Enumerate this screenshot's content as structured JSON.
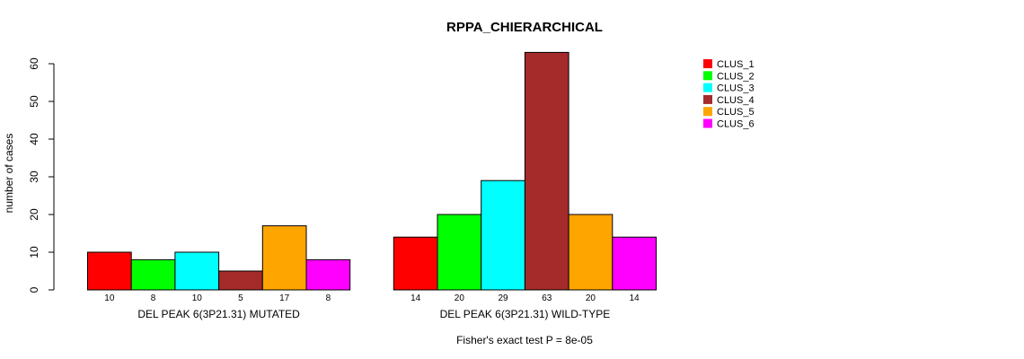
{
  "chart_data": {
    "type": "bar",
    "title": "RPPA_CHIERARCHICAL",
    "ylabel": "number of cases",
    "ylim": [
      0,
      60
    ],
    "yticks": [
      0,
      10,
      20,
      30,
      40,
      50,
      60
    ],
    "footnote": "Fisher's exact test P = 8e-05",
    "legend_position": "top-right",
    "series": [
      {
        "name": "CLUS_1",
        "color": "#ff0000"
      },
      {
        "name": "CLUS_2",
        "color": "#00ff00"
      },
      {
        "name": "CLUS_3",
        "color": "#00ffff"
      },
      {
        "name": "CLUS_4",
        "color": "#a52a2a"
      },
      {
        "name": "CLUS_5",
        "color": "#ffa500"
      },
      {
        "name": "CLUS_6",
        "color": "#ff00ff"
      }
    ],
    "groups": [
      {
        "label": "DEL PEAK  6(3P21.31) MUTATED",
        "values": [
          10,
          8,
          10,
          5,
          17,
          8
        ]
      },
      {
        "label": "DEL PEAK  6(3P21.31) WILD-TYPE",
        "values": [
          14,
          20,
          29,
          63,
          20,
          14
        ]
      }
    ]
  }
}
